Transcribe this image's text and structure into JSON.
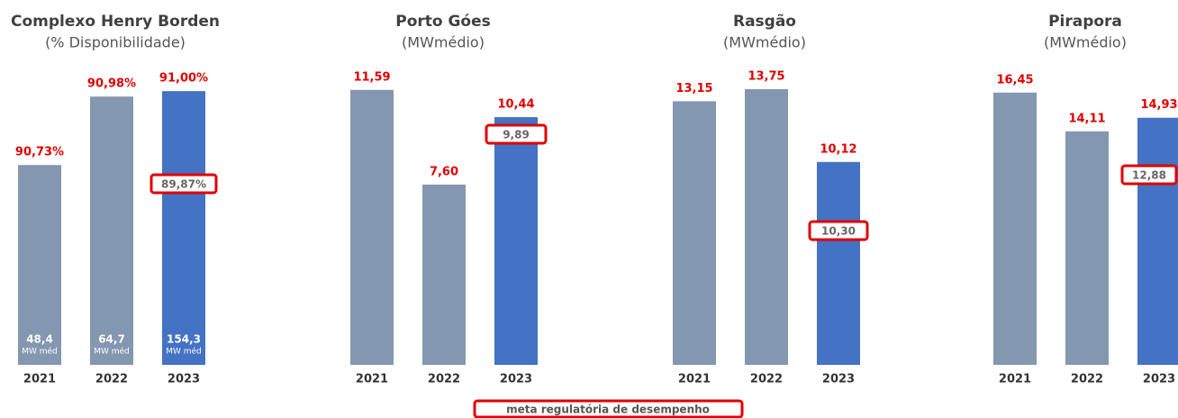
{
  "chart_data": [
    {
      "type": "bar",
      "title": "Complexo Henry Borden",
      "subtitle": "(% Disponibilidade)",
      "categories": [
        "2021",
        "2022",
        "2023"
      ],
      "values": [
        90.73,
        90.98,
        91.0
      ],
      "value_labels": [
        "90,73%",
        "90,98%",
        "91,00%"
      ],
      "colors": [
        "#8497b0",
        "#8497b0",
        "#4472c4"
      ],
      "ylim": [
        90,
        91.04
      ],
      "inner_labels": [
        "48,4",
        "64,7",
        "154,3"
      ],
      "inner_unit": "MW méd",
      "target": {
        "value": 89.87,
        "label": "89,87%"
      }
    },
    {
      "type": "bar",
      "title": "Porto Góes",
      "subtitle": "(MWmédio)",
      "categories": [
        "2021",
        "2022",
        "2023"
      ],
      "values": [
        11.59,
        7.6,
        10.44
      ],
      "value_labels": [
        "11,59",
        "7,60",
        "10,44"
      ],
      "colors": [
        "#8497b0",
        "#8497b0",
        "#4472c4"
      ],
      "ylim": [
        0,
        12.0
      ],
      "target": {
        "value": 9.89,
        "label": "9,89"
      }
    },
    {
      "type": "bar",
      "title": "Rasgão",
      "subtitle": "(MWmédio)",
      "categories": [
        "2021",
        "2022",
        "2023"
      ],
      "values": [
        13.15,
        13.75,
        10.12
      ],
      "value_labels": [
        "13,15",
        "13,75",
        "10,12"
      ],
      "colors": [
        "#8497b0",
        "#8497b0",
        "#4472c4"
      ],
      "ylim": [
        0,
        14.2
      ],
      "target": {
        "value": 10.3,
        "label": "10,30"
      }
    },
    {
      "type": "bar",
      "title": "Pirapora",
      "subtitle": "(MWmédio)",
      "categories": [
        "2021",
        "2022",
        "2023"
      ],
      "values": [
        16.45,
        14.11,
        14.93
      ],
      "value_labels": [
        "16,45",
        "14,11",
        "14,93"
      ],
      "colors": [
        "#8497b0",
        "#8497b0",
        "#4472c4"
      ],
      "ylim": [
        0,
        17.2
      ],
      "target": {
        "value": 12.88,
        "label": "12,88"
      }
    }
  ],
  "legend": "meta regulatória de desempenho"
}
